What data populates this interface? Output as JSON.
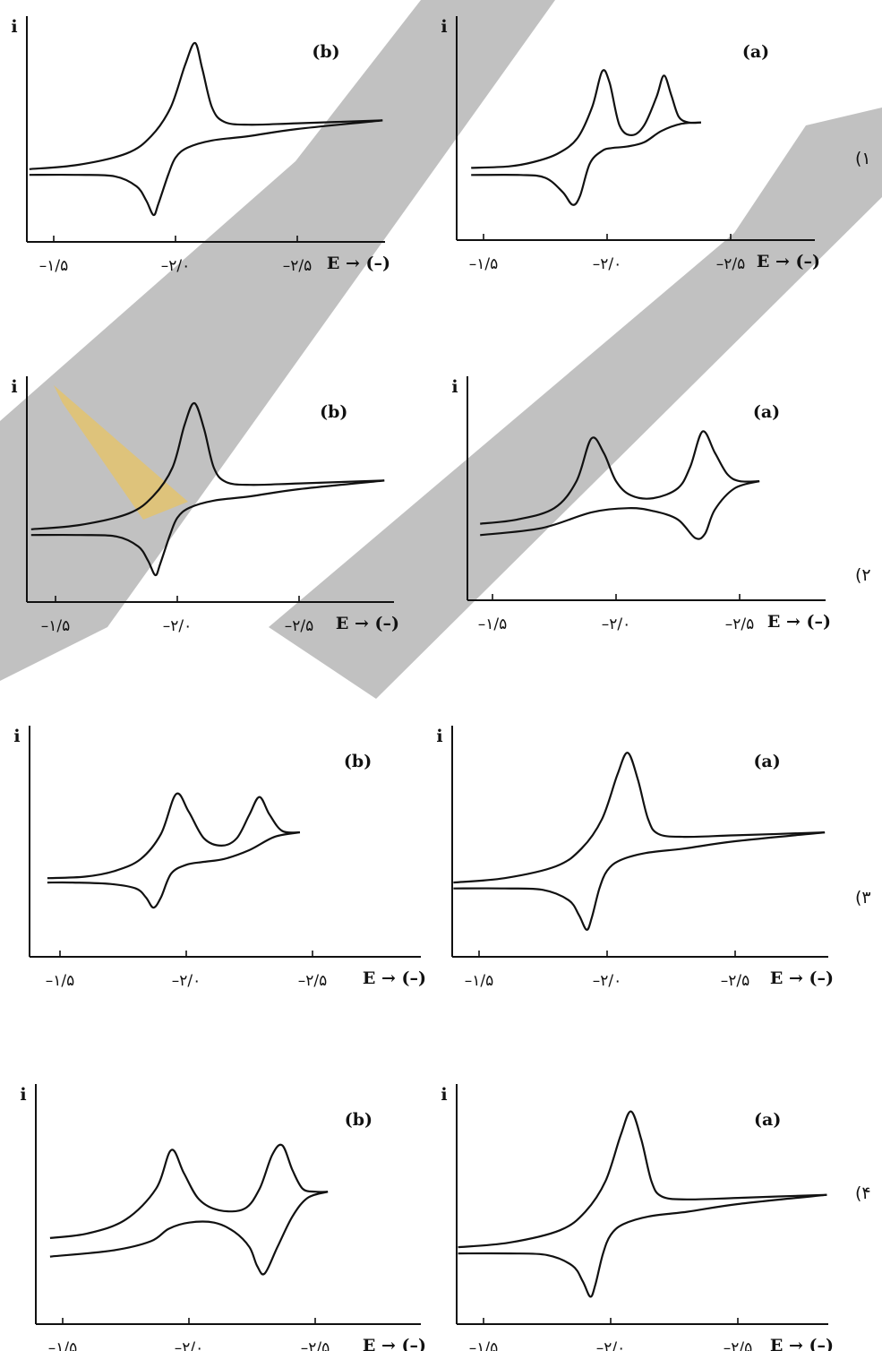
{
  "colors": {
    "curve": "#111111",
    "axis": "#111111",
    "watermark": "#9a9a9a",
    "accent": "#f5c542"
  },
  "chart_data": [
    {
      "option": "(۱",
      "panels": [
        {
          "label": "(a)",
          "type": "line",
          "ylabel": "i",
          "xlabel": "E → (–)",
          "xticks": [
            "–۱/۵",
            "–۲/۰",
            "–۲/۵"
          ],
          "xtick_values": [
            -1.5,
            -2.0,
            -2.5
          ],
          "xlim": [
            -1.4,
            -2.65
          ],
          "series": [
            {
              "x": [
                -1.45,
                -1.6,
                -1.7,
                -1.8,
                -1.88,
                -1.94,
                -1.98,
                -2.01,
                -2.05,
                -2.1,
                -2.15,
                -2.2,
                -2.23,
                -2.26,
                -2.29,
                -2.33,
                -2.38
              ],
              "y": [
                0.12,
                0.13,
                0.16,
                0.22,
                0.33,
                0.55,
                0.8,
                0.72,
                0.42,
                0.35,
                0.42,
                0.62,
                0.77,
                0.63,
                0.48,
                0.44,
                0.44
              ]
            },
            {
              "x": [
                -2.38,
                -2.3,
                -2.22,
                -2.15,
                -2.08,
                -2.02,
                -1.98,
                -1.93,
                -1.89,
                -1.86,
                -1.82,
                -1.75,
                -1.65,
                -1.45
              ],
              "y": [
                0.44,
                0.43,
                0.38,
                0.3,
                0.27,
                0.26,
                0.24,
                0.15,
                -0.08,
                -0.14,
                -0.05,
                0.05,
                0.07,
                0.07
              ]
            }
          ]
        },
        {
          "label": "(b)",
          "type": "line",
          "ylabel": "i",
          "xlabel": "E → (–)",
          "xticks": [
            "–۱/۵",
            "–۲/۰",
            "–۲/۵"
          ],
          "xtick_values": [
            -1.5,
            -2.0,
            -2.5
          ],
          "xlim": [
            -1.4,
            -2.85
          ],
          "series": [
            {
              "x": [
                -1.4,
                -1.6,
                -1.8,
                -1.9,
                -1.98,
                -2.04,
                -2.08,
                -2.11,
                -2.15,
                -2.2,
                -2.3,
                -2.5,
                -2.85
              ],
              "y": [
                0.12,
                0.15,
                0.23,
                0.35,
                0.55,
                0.85,
                1.0,
                0.82,
                0.55,
                0.45,
                0.43,
                0.44,
                0.46
              ]
            },
            {
              "x": [
                -2.85,
                -2.5,
                -2.3,
                -2.15,
                -2.05,
                -2.0,
                -1.97,
                -1.93,
                -1.91,
                -1.88,
                -1.84,
                -1.75,
                -1.6,
                -1.4
              ],
              "y": [
                0.46,
                0.4,
                0.35,
                0.32,
                0.27,
                0.2,
                0.08,
                -0.12,
                -0.2,
                -0.1,
                0.0,
                0.07,
                0.08,
                0.08
              ]
            }
          ]
        }
      ]
    },
    {
      "option": "(۲",
      "panels": [
        {
          "label": "(a)",
          "type": "line",
          "ylabel": "i",
          "xlabel": "E → (–)",
          "xticks": [
            "–۱/۵",
            "–۲/۰",
            "–۲/۵"
          ],
          "xtick_values": [
            -1.5,
            -2.0,
            -2.5
          ],
          "xlim": [
            -1.4,
            -2.75
          ],
          "series": [
            {
              "x": [
                -1.45,
                -1.6,
                -1.75,
                -1.84,
                -1.9,
                -1.95,
                -2.0,
                -2.06,
                -2.15,
                -2.25,
                -2.3,
                -2.35,
                -2.4,
                -2.45,
                -2.5,
                -2.58
              ],
              "y": [
                0.15,
                0.18,
                0.26,
                0.45,
                0.75,
                0.65,
                0.45,
                0.35,
                0.33,
                0.4,
                0.55,
                0.8,
                0.65,
                0.5,
                0.45,
                0.45
              ]
            },
            {
              "x": [
                -2.58,
                -2.48,
                -2.4,
                -2.36,
                -2.32,
                -2.25,
                -2.15,
                -2.05,
                -1.9,
                -1.7,
                -1.45
              ],
              "y": [
                0.45,
                0.4,
                0.25,
                0.08,
                0.05,
                0.18,
                0.24,
                0.26,
                0.23,
                0.12,
                0.07
              ]
            }
          ]
        },
        {
          "label": "(b)",
          "type": "line",
          "ylabel": "i",
          "xlabel": "E → (–)",
          "xticks": [
            "–۱/۵",
            "–۲/۰",
            "–۲/۵"
          ],
          "xtick_values": [
            -1.5,
            -2.0,
            -2.5
          ],
          "xlim": [
            -1.4,
            -2.85
          ],
          "series": [
            {
              "x": [
                -1.4,
                -1.6,
                -1.8,
                -1.9,
                -1.98,
                -2.03,
                -2.07,
                -2.11,
                -2.15,
                -2.2,
                -2.3,
                -2.5,
                -2.85
              ],
              "y": [
                0.12,
                0.15,
                0.23,
                0.35,
                0.55,
                0.85,
                1.0,
                0.82,
                0.55,
                0.45,
                0.43,
                0.44,
                0.46
              ]
            },
            {
              "x": [
                -2.85,
                -2.5,
                -2.3,
                -2.15,
                -2.05,
                -2.0,
                -1.97,
                -1.93,
                -1.91,
                -1.88,
                -1.84,
                -1.75,
                -1.6,
                -1.4
              ],
              "y": [
                0.46,
                0.4,
                0.35,
                0.32,
                0.27,
                0.2,
                0.08,
                -0.12,
                -0.2,
                -0.1,
                0.0,
                0.07,
                0.08,
                0.08
              ]
            }
          ]
        }
      ]
    },
    {
      "option": "(۳",
      "panels": [
        {
          "label": "(a)",
          "type": "line",
          "ylabel": "i",
          "xlabel": "E → (–)",
          "xticks": [
            "–۱/۵",
            "–۲/۰",
            "–۲/۵"
          ],
          "xtick_values": [
            -1.5,
            -2.0,
            -2.5
          ],
          "xlim": [
            -1.4,
            -2.85
          ],
          "series": [
            {
              "x": [
                -1.4,
                -1.6,
                -1.8,
                -1.9,
                -1.98,
                -2.04,
                -2.08,
                -2.12,
                -2.16,
                -2.2,
                -2.3,
                -2.5,
                -2.85
              ],
              "y": [
                0.12,
                0.15,
                0.23,
                0.35,
                0.55,
                0.85,
                1.0,
                0.82,
                0.55,
                0.45,
                0.43,
                0.44,
                0.46
              ]
            },
            {
              "x": [
                -2.85,
                -2.5,
                -2.3,
                -2.15,
                -2.05,
                -2.0,
                -1.97,
                -1.94,
                -1.92,
                -1.89,
                -1.85,
                -1.75,
                -1.6,
                -1.4
              ],
              "y": [
                0.46,
                0.4,
                0.35,
                0.32,
                0.27,
                0.2,
                0.08,
                -0.12,
                -0.2,
                -0.1,
                0.0,
                0.07,
                0.08,
                0.08
              ]
            }
          ]
        },
        {
          "label": "(b)",
          "type": "line",
          "ylabel": "i",
          "xlabel": "E → (–)",
          "xticks": [
            "–۱/۵",
            "–۲/۰",
            "–۲/۵"
          ],
          "xtick_values": [
            -1.5,
            -2.0,
            -2.5
          ],
          "xlim": [
            -1.4,
            -2.6
          ],
          "series": [
            {
              "x": [
                -1.45,
                -1.6,
                -1.72,
                -1.82,
                -1.9,
                -1.96,
                -2.01,
                -2.07,
                -2.14,
                -2.2,
                -2.25,
                -2.29,
                -2.33,
                -2.38,
                -2.45
              ],
              "y": [
                0.15,
                0.16,
                0.2,
                0.28,
                0.45,
                0.72,
                0.6,
                0.42,
                0.37,
                0.42,
                0.58,
                0.7,
                0.58,
                0.47,
                0.46
              ]
            },
            {
              "x": [
                -2.45,
                -2.35,
                -2.25,
                -2.15,
                -2.07,
                -2.0,
                -1.94,
                -1.9,
                -1.87,
                -1.84,
                -1.8,
                -1.7,
                -1.55,
                -1.45
              ],
              "y": [
                0.46,
                0.43,
                0.34,
                0.28,
                0.26,
                0.24,
                0.18,
                0.02,
                -0.05,
                0.02,
                0.08,
                0.11,
                0.12,
                0.12
              ]
            }
          ]
        }
      ]
    },
    {
      "option": "(۴",
      "panels": [
        {
          "label": "(a)",
          "type": "line",
          "ylabel": "i",
          "xlabel": "E → (–)",
          "xticks": [
            "–۱/۵",
            "–۲/۰",
            "–۲/۵"
          ],
          "xtick_values": [
            -1.5,
            -2.0,
            -2.5
          ],
          "xlim": [
            -1.4,
            -2.85
          ],
          "series": [
            {
              "x": [
                -1.4,
                -1.6,
                -1.8,
                -1.9,
                -1.98,
                -2.04,
                -2.08,
                -2.12,
                -2.16,
                -2.2,
                -2.3,
                -2.5,
                -2.85
              ],
              "y": [
                0.12,
                0.15,
                0.23,
                0.35,
                0.55,
                0.85,
                1.0,
                0.82,
                0.55,
                0.45,
                0.43,
                0.44,
                0.46
              ]
            },
            {
              "x": [
                -2.85,
                -2.5,
                -2.3,
                -2.15,
                -2.05,
                -2.0,
                -1.97,
                -1.94,
                -1.92,
                -1.89,
                -1.85,
                -1.75,
                -1.6,
                -1.4
              ],
              "y": [
                0.46,
                0.4,
                0.35,
                0.32,
                0.27,
                0.2,
                0.08,
                -0.12,
                -0.2,
                -0.1,
                0.0,
                0.07,
                0.08,
                0.08
              ]
            }
          ]
        },
        {
          "label": "(b)",
          "type": "line",
          "ylabel": "i",
          "xlabel": "E → (–)",
          "xticks": [
            "–۱/۵",
            "–۲/۰",
            "–۲/۵"
          ],
          "xtick_values": [
            -1.5,
            -2.0,
            -2.5
          ],
          "xlim": [
            -1.4,
            -2.6
          ],
          "series": [
            {
              "x": [
                -1.45,
                -1.6,
                -1.75,
                -1.87,
                -1.93,
                -1.98,
                -2.04,
                -2.12,
                -2.22,
                -2.28,
                -2.33,
                -2.37,
                -2.41,
                -2.45,
                -2.5,
                -2.55
              ],
              "y": [
                0.18,
                0.21,
                0.3,
                0.5,
                0.75,
                0.6,
                0.43,
                0.36,
                0.37,
                0.5,
                0.72,
                0.78,
                0.62,
                0.5,
                0.48,
                0.48
              ]
            },
            {
              "x": [
                -2.55,
                -2.47,
                -2.41,
                -2.35,
                -2.3,
                -2.27,
                -2.24,
                -2.18,
                -2.1,
                -2.0,
                -1.92,
                -1.85,
                -1.7,
                -1.45
              ],
              "y": [
                0.48,
                0.44,
                0.32,
                0.12,
                -0.05,
                0.0,
                0.12,
                0.22,
                0.28,
                0.28,
                0.24,
                0.16,
                0.1,
                0.06
              ]
            }
          ]
        }
      ]
    }
  ]
}
